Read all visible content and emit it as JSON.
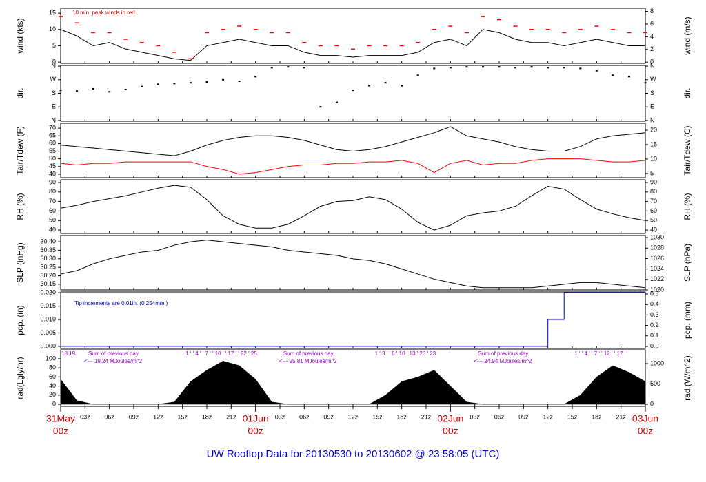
{
  "time_axis": {
    "xlim": [
      0,
      72
    ],
    "x": [
      0,
      2,
      4,
      6,
      8,
      10,
      12,
      14,
      16,
      18,
      20,
      22,
      24,
      26,
      28,
      30,
      32,
      34,
      36,
      38,
      40,
      42,
      44,
      46,
      48,
      50,
      52,
      54,
      56,
      58,
      60,
      62,
      64,
      66,
      68,
      70,
      72
    ],
    "xticks": [
      {
        "value": 0,
        "label": "00z"
      },
      {
        "value": 3,
        "label": "03z"
      },
      {
        "value": 6,
        "label": "06z"
      },
      {
        "value": 9,
        "label": "09z"
      },
      {
        "value": 12,
        "label": "12z"
      },
      {
        "value": 15,
        "label": "15z"
      },
      {
        "value": 18,
        "label": "18z"
      },
      {
        "value": 21,
        "label": "21z"
      },
      {
        "value": 24,
        "label": "00z"
      },
      {
        "value": 27,
        "label": "03z"
      },
      {
        "value": 30,
        "label": "06z"
      },
      {
        "value": 33,
        "label": "09z"
      },
      {
        "value": 36,
        "label": "12z"
      },
      {
        "value": 39,
        "label": "15z"
      },
      {
        "value": 42,
        "label": "18z"
      },
      {
        "value": 45,
        "label": "21z"
      },
      {
        "value": 48,
        "label": "00z"
      },
      {
        "value": 51,
        "label": "03z"
      },
      {
        "value": 54,
        "label": "06z"
      },
      {
        "value": 57,
        "label": "09z"
      },
      {
        "value": 60,
        "label": "12z"
      },
      {
        "value": 63,
        "label": "15z"
      },
      {
        "value": 66,
        "label": "18z"
      },
      {
        "value": 69,
        "label": "21z"
      },
      {
        "value": 72,
        "label": "00z"
      }
    ],
    "date_labels": [
      {
        "value": 0,
        "label": "31May"
      },
      {
        "value": 24,
        "label": "01Jun"
      },
      {
        "value": 48,
        "label": "02Jun"
      },
      {
        "value": 72,
        "label": "03Jun"
      }
    ]
  },
  "chart_data": [
    {
      "type": "line",
      "ylabel": "wind (kts)",
      "y2label": "wind (m/s)",
      "annotation": "10 min. peak winds in red",
      "ylim": [
        -0.4,
        16.5
      ],
      "yticks": [
        0,
        5,
        10,
        15
      ],
      "y2lim": [
        -0.2,
        8.5
      ],
      "y2ticks": [
        0,
        2,
        4,
        6,
        8
      ],
      "series": [
        {
          "color": "#000000",
          "marker": "none",
          "values": [
            10,
            8,
            5,
            6,
            4,
            3,
            2,
            1,
            0.5,
            5,
            6,
            7,
            6,
            5,
            5,
            3,
            2,
            2,
            1.5,
            2,
            2,
            2,
            3,
            6,
            7,
            5,
            10,
            9,
            7,
            6,
            6,
            5,
            6,
            7,
            6,
            5,
            5
          ]
        },
        {
          "color": "#ff0000",
          "marker": "dash",
          "values": [
            14,
            12,
            9,
            9,
            7,
            6,
            5,
            3,
            1,
            9,
            10,
            11,
            10,
            9,
            9,
            6,
            5,
            5,
            4,
            5,
            5,
            5,
            6,
            10,
            11,
            9,
            14,
            13,
            11,
            10,
            10,
            9,
            10,
            11,
            10,
            9,
            9
          ]
        }
      ]
    },
    {
      "type": "scatter",
      "ylabel": "dir.",
      "y2label": "dir.",
      "mirror_ticks": true,
      "ylim": [
        -5,
        365
      ],
      "yticks": [
        {
          "value": 0,
          "label": "N"
        },
        {
          "value": 90,
          "label": "E"
        },
        {
          "value": 180,
          "label": "S"
        },
        {
          "value": 270,
          "label": "W"
        },
        {
          "value": 360,
          "label": "N"
        }
      ],
      "series": [
        {
          "color": "#000000",
          "values": [
            200,
            195,
            210,
            190,
            205,
            225,
            240,
            245,
            250,
            255,
            270,
            260,
            290,
            350,
            355,
            350,
            90,
            120,
            200,
            230,
            250,
            230,
            300,
            345,
            350,
            355,
            355,
            355,
            350,
            355,
            350,
            350,
            345,
            330,
            300,
            290,
            250
          ]
        }
      ]
    },
    {
      "type": "line",
      "ylabel": "Tair/Tdew (F)",
      "y2label": "Tair/Tdew (C)",
      "ylim": [
        37.7,
        73.2
      ],
      "yticks": [
        40,
        45,
        50,
        55,
        60,
        65,
        70
      ],
      "y2lim": [
        3.55,
        22.4
      ],
      "y2ticks": [
        5,
        10,
        15,
        20
      ],
      "series": [
        {
          "color": "#000000",
          "marker": "none",
          "values": [
            59,
            58,
            57,
            56,
            55,
            54,
            53,
            52,
            55,
            59,
            62,
            64,
            65,
            65,
            64,
            62,
            59,
            56,
            55,
            56,
            58,
            61,
            64,
            67,
            71,
            65,
            63,
            61,
            58,
            56,
            55,
            55,
            58,
            63,
            65,
            66,
            67
          ]
        },
        {
          "color": "#ff0000",
          "marker": "none",
          "values": [
            47,
            46,
            47,
            47,
            48,
            48,
            48,
            48,
            48,
            45,
            43,
            40,
            41,
            43,
            45,
            46,
            46,
            47,
            47,
            48,
            48,
            49,
            47,
            41,
            47,
            49,
            46,
            47,
            47,
            49,
            50,
            50,
            50,
            49,
            48,
            48,
            49
          ]
        }
      ]
    },
    {
      "type": "line",
      "ylabel": "RH (%)",
      "y2label": "RH (%)",
      "mirror_ticks": true,
      "ylim": [
        36.4,
        92.9
      ],
      "yticks": [
        40,
        50,
        60,
        70,
        80,
        90
      ],
      "series": [
        {
          "color": "#000000",
          "marker": "none",
          "values": [
            63,
            66,
            70,
            73,
            76,
            80,
            84,
            87,
            85,
            72,
            55,
            46,
            42,
            42,
            46,
            55,
            65,
            70,
            71,
            75,
            72,
            62,
            48,
            40,
            45,
            55,
            58,
            60,
            65,
            76,
            86,
            83,
            72,
            62,
            57,
            53,
            50
          ]
        }
      ]
    },
    {
      "type": "line",
      "ylabel": "SLP (inHg)",
      "y2label": "SLP (hPa)",
      "ylim": [
        30.117,
        30.437
      ],
      "yticks": [
        {
          "value": 30.15,
          "label": "30.15"
        },
        {
          "value": 30.2,
          "label": "30.20"
        },
        {
          "value": 30.25,
          "label": "30.25"
        },
        {
          "value": 30.3,
          "label": "30.30"
        },
        {
          "value": 30.35,
          "label": "30.35"
        },
        {
          "value": 30.4,
          "label": "30.40"
        }
      ],
      "y2lim": [
        1020,
        1030.4
      ],
      "y2ticks": [
        1020,
        1022,
        1024,
        1026,
        1028,
        1030
      ],
      "series": [
        {
          "color": "#000000",
          "marker": "none",
          "values": [
            30.21,
            30.23,
            30.27,
            30.3,
            30.32,
            30.34,
            30.35,
            30.38,
            30.4,
            30.41,
            30.4,
            30.39,
            30.38,
            30.37,
            30.35,
            30.34,
            30.33,
            30.32,
            30.3,
            30.29,
            30.27,
            30.24,
            30.21,
            30.18,
            30.16,
            30.14,
            30.13,
            30.13,
            30.13,
            30.13,
            30.14,
            30.15,
            30.16,
            30.16,
            30.15,
            30.14,
            30.13
          ]
        }
      ]
    },
    {
      "type": "line",
      "ylabel": "pcp. (in)",
      "y2label": "pcp. (mm)",
      "annotation": "Tip increments are 0.01in. (0.254mm.)",
      "ylim": [
        -0.0008,
        0.0203
      ],
      "yticks": [
        {
          "value": 0,
          "label": "0.000"
        },
        {
          "value": 0.005,
          "label": "0.005"
        },
        {
          "value": 0.01,
          "label": "0.010"
        },
        {
          "value": 0.015,
          "label": "0.015"
        },
        {
          "value": 0.02,
          "label": "0.020"
        }
      ],
      "y2lim": [
        -0.02,
        0.52
      ],
      "y2ticks": [
        {
          "value": 0,
          "label": "0.0"
        },
        0.1,
        0.2,
        0.3,
        0.4,
        0.5
      ],
      "series": [
        {
          "color": "#0000cc",
          "marker": "none",
          "step": true,
          "values": [
            0,
            0,
            0,
            0,
            0,
            0,
            0,
            0,
            0,
            0,
            0,
            0,
            0,
            0,
            0,
            0,
            0,
            0,
            0,
            0,
            0,
            0,
            0,
            0,
            0,
            0,
            0,
            0,
            0,
            0,
            0.01,
            0.02,
            0.02,
            0.02,
            0.02,
            0.02,
            0.02
          ]
        }
      ]
    },
    {
      "type": "area",
      "ylabel": "rad(Lgly/hr)",
      "y2label": "rad (W/m^2)",
      "ylim": [
        -4.5,
        119.7
      ],
      "yticks": [
        0,
        20,
        40,
        60,
        80,
        100
      ],
      "y2lim": [
        -51,
        1339
      ],
      "y2ticks": [
        0,
        500,
        1000
      ],
      "hour_marks": [
        "18  19",
        "1 ' ' 4 ' ' 7 ' ' 10 ' ' 17 ' ' 22 ' 25",
        "1 ' 3 ' ' 6 ' 10 ' 13 ' 20 ' 23",
        "1 ' ' 4 ' ' 7 ' ' 12 ' ' 17 '"
      ],
      "day_sums": [
        {
          "label": "Sum of previous day",
          "note": "<--- 19.24 MJoules/m^2"
        },
        {
          "label": "Sum of previous day",
          "note": "<--- 25.81 MJoules/m^2"
        },
        {
          "label": "Sum of previous day",
          "note": "<--- 24.94 MJoules/m^2"
        }
      ],
      "series": [
        {
          "color": "#000000",
          "values": [
            55,
            8,
            0,
            0,
            0,
            0,
            0,
            5,
            50,
            75,
            95,
            85,
            55,
            5,
            0,
            0,
            0,
            0,
            0,
            0,
            20,
            50,
            60,
            75,
            40,
            5,
            0,
            0,
            0,
            0,
            0,
            0,
            20,
            60,
            85,
            70,
            50
          ]
        }
      ]
    }
  ],
  "footer": "UW Rooftop Data for 20130530  to  20130602 @ 23:58:05  (UTC)"
}
